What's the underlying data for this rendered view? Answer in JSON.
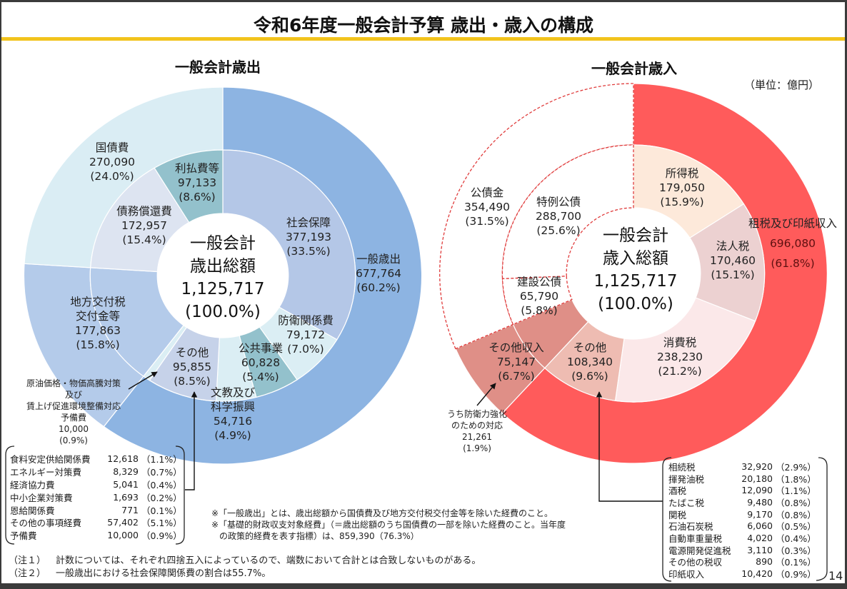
{
  "page": {
    "title": "令和6年度一般会計予算 歳出・歳入の構成",
    "unit_note": "（単位：億円）",
    "page_number": "14"
  },
  "chart_data": [
    {
      "type": "pie",
      "variant": "nested-donut",
      "title": "一般会計歳出",
      "total": 1125717,
      "center_lines": [
        "一般会計",
        "歳出総額",
        "1,125,717",
        "(100.0%)"
      ],
      "outer": [
        {
          "id": "general-expenditure",
          "label_lines": [
            "一般歳出"
          ],
          "value": 677764,
          "value_label": "677,764",
          "pct": 60.2,
          "pct_label": "(60.2%)",
          "color": "#8db4e2"
        },
        {
          "id": "local-allocation-tax",
          "label_lines": [
            "地方交付税",
            "交付金等"
          ],
          "value": 177863,
          "value_label": "177,863",
          "pct": 15.8,
          "pct_label": "(15.8%)",
          "color": "#b4cbea"
        },
        {
          "id": "national-debt-service",
          "label_lines": [
            "国債費"
          ],
          "value": 270090,
          "value_label": "270,090",
          "pct": 24.0,
          "pct_label": "(24.0%)",
          "color": "#daedf4"
        }
      ],
      "inner": [
        {
          "id": "social-security",
          "label_lines": [
            "社会保障"
          ],
          "value": 377193,
          "value_label": "377,193",
          "pct": 33.5,
          "pct_label": "(33.5%)",
          "color": "#b4c7e7"
        },
        {
          "id": "defense",
          "label_lines": [
            "防衛関係費"
          ],
          "value": 79172,
          "value_label": "79,172",
          "pct": 7.0,
          "pct_label": "(7.0%)",
          "color": "#dbeef4"
        },
        {
          "id": "public-works",
          "label_lines": [
            "公共事業"
          ],
          "value": 60828,
          "value_label": "60,828",
          "pct": 5.4,
          "pct_label": "(5.4%)",
          "color": "#93c1cc"
        },
        {
          "id": "education-science",
          "label_lines": [
            "文教及び",
            "科学振興"
          ],
          "value": 54716,
          "value_label": "54,716",
          "pct": 4.9,
          "pct_label": "(4.9%)",
          "color": "#dbeef4"
        },
        {
          "id": "other",
          "label_lines": [
            "その他"
          ],
          "value": 95855,
          "value_label": "95,855",
          "pct": 8.5,
          "pct_label": "(8.5%)",
          "color": "#c6d2e9"
        },
        {
          "id": "reserve-fund",
          "label_lines": [
            "原油価格・物価高騰対策",
            "及び",
            "賃上げ促進環境整備対応",
            "予備費"
          ],
          "value": 10000,
          "value_label": "10,000",
          "pct": 0.9,
          "pct_label": "(0.9%)",
          "color": "#dbeef4"
        },
        {
          "id": "local-allocation-tax",
          "label_lines": [
            "地方交付税",
            "交付金等"
          ],
          "value": 177863,
          "value_label": "177,863",
          "pct": 15.8,
          "pct_label": "(15.8%)",
          "color": "#b4cbea"
        },
        {
          "id": "debt-redemption",
          "label_lines": [
            "債務償還費"
          ],
          "value": 172957,
          "value_label": "172,957",
          "pct": 15.4,
          "pct_label": "(15.4%)",
          "color": "#dde4f1"
        },
        {
          "id": "interest-payments",
          "label_lines": [
            "利払費等"
          ],
          "value": 97133,
          "value_label": "97,133",
          "pct": 8.6,
          "pct_label": "(8.6%)",
          "color": "#93c1cc"
        }
      ],
      "other_breakdown": [
        {
          "name": "食料安定供給関係費",
          "value": "12,618",
          "pct": "（1.1%）"
        },
        {
          "name": "エネルギー対策費",
          "value": "8,329",
          "pct": "（0.7%）"
        },
        {
          "name": "経済協力費",
          "value": "5,041",
          "pct": "（0.4%）"
        },
        {
          "name": "中小企業対策費",
          "value": "1,693",
          "pct": "（0.2%）"
        },
        {
          "name": "恩給関係費",
          "value": "771",
          "pct": "（0.1%）"
        },
        {
          "name": "その他の事項経費",
          "value": "57,402",
          "pct": "（5.1%）"
        },
        {
          "name": "予備費",
          "value": "10,000",
          "pct": "（0.9%）"
        }
      ]
    },
    {
      "type": "pie",
      "variant": "nested-donut",
      "title": "一般会計歳入",
      "total": 1125717,
      "center_lines": [
        "一般会計",
        "歳入総額",
        "1,125,717",
        "(100.0%)"
      ],
      "outer": [
        {
          "id": "tax-and-stamp-revenue",
          "label_lines": [
            "租税及び印紙収入"
          ],
          "value": 696080,
          "value_label": "696,080",
          "pct": 61.8,
          "pct_label": "(61.8%)",
          "color": "#ff5b5b"
        },
        {
          "id": "other-revenue",
          "label_lines": [
            "その他収入"
          ],
          "value": 75147,
          "value_label": "75,147",
          "pct": 6.7,
          "pct_label": "(6.7%)",
          "color": "#df8f87"
        },
        {
          "id": "government-bonds",
          "label_lines": [
            "公債金"
          ],
          "value": 354490,
          "value_label": "354,490",
          "pct": 31.5,
          "pct_label": "(31.5%)",
          "color": "#ffffff",
          "outline": "dashed",
          "outline_color": "#e03c3c"
        }
      ],
      "inner": [
        {
          "id": "income-tax",
          "label_lines": [
            "所得税"
          ],
          "value": 179050,
          "value_label": "179,050",
          "pct": 15.9,
          "pct_label": "(15.9%)",
          "color": "#fde9da"
        },
        {
          "id": "corporate-tax",
          "label_lines": [
            "法人税"
          ],
          "value": 170460,
          "value_label": "170,460",
          "pct": 15.1,
          "pct_label": "(15.1%)",
          "color": "#ecd1d1"
        },
        {
          "id": "consumption-tax",
          "label_lines": [
            "消費税"
          ],
          "value": 238230,
          "value_label": "238,230",
          "pct": 21.2,
          "pct_label": "(21.2%)",
          "color": "#fbe8e9"
        },
        {
          "id": "other-taxes",
          "label_lines": [
            "その他"
          ],
          "value": 108340,
          "value_label": "108,340",
          "pct": 9.6,
          "pct_label": "(9.6%)",
          "color": "#eebcb2"
        },
        {
          "id": "other-revenue",
          "label_lines": [
            "その他収入"
          ],
          "value": 75147,
          "value_label": "75,147",
          "pct": 6.7,
          "pct_label": "(6.7%)",
          "color": "#df8f87"
        },
        {
          "id": "construction-bonds",
          "label_lines": [
            "建設公債"
          ],
          "value": 65790,
          "value_label": "65,790",
          "pct": 5.8,
          "pct_label": "(5.8%)",
          "color": "#ffffff",
          "outline": "dashed",
          "outline_color": "#e03c3c"
        },
        {
          "id": "special-deficit-bonds",
          "label_lines": [
            "特例公債"
          ],
          "value": 288700,
          "value_label": "288,700",
          "pct": 25.6,
          "pct_label": "(25.6%)",
          "color": "#ffffff",
          "outline": "dashed",
          "outline_color": "#e03c3c"
        }
      ],
      "annotation": {
        "label_lines": [
          "うち防衛力強化",
          "のための対応"
        ],
        "value_label": "21,261",
        "pct_label": "(1.9%)"
      },
      "other_breakdown": [
        {
          "name": "相続税",
          "value": "32,920",
          "pct": "（2.9%）"
        },
        {
          "name": "揮発油税",
          "value": "20,180",
          "pct": "（1.8%）"
        },
        {
          "name": "酒税",
          "value": "12,090",
          "pct": "（1.1%）"
        },
        {
          "name": "たばこ税",
          "value": "9,480",
          "pct": "（0.8%）"
        },
        {
          "name": "関税",
          "value": "9,170",
          "pct": "（0.8%）"
        },
        {
          "name": "石油石炭税",
          "value": "6,060",
          "pct": "（0.5%）"
        },
        {
          "name": "自動車重量税",
          "value": "4,020",
          "pct": "（0.4%）"
        },
        {
          "name": "電源開発促進税",
          "value": "3,110",
          "pct": "（0.3%）"
        },
        {
          "name": "その他の税収",
          "value": "890",
          "pct": "（0.1%）"
        },
        {
          "name": "印紙収入",
          "value": "10,420",
          "pct": "（0.9%）"
        }
      ]
    }
  ],
  "notes": {
    "definitions": [
      "※「一般歳出」とは、歳出総額から国債費及び地方交付税交付金等を除いた経費のこと。",
      "※「基礎的財政収支対象経費」（＝歳出総額のうち国債費の一部を除いた経費のこと。当年度",
      "の政策的経費を表す指標）は、859,390（76.3%）"
    ],
    "footnotes": [
      {
        "tag": "（注１）",
        "text": "計数については、それぞれ四捨五入によっているので、端数において合計とは合致しないものがある。"
      },
      {
        "tag": "（注２）",
        "text": "一般歳出における社会保障関係費の割合は55.7%。"
      }
    ]
  }
}
